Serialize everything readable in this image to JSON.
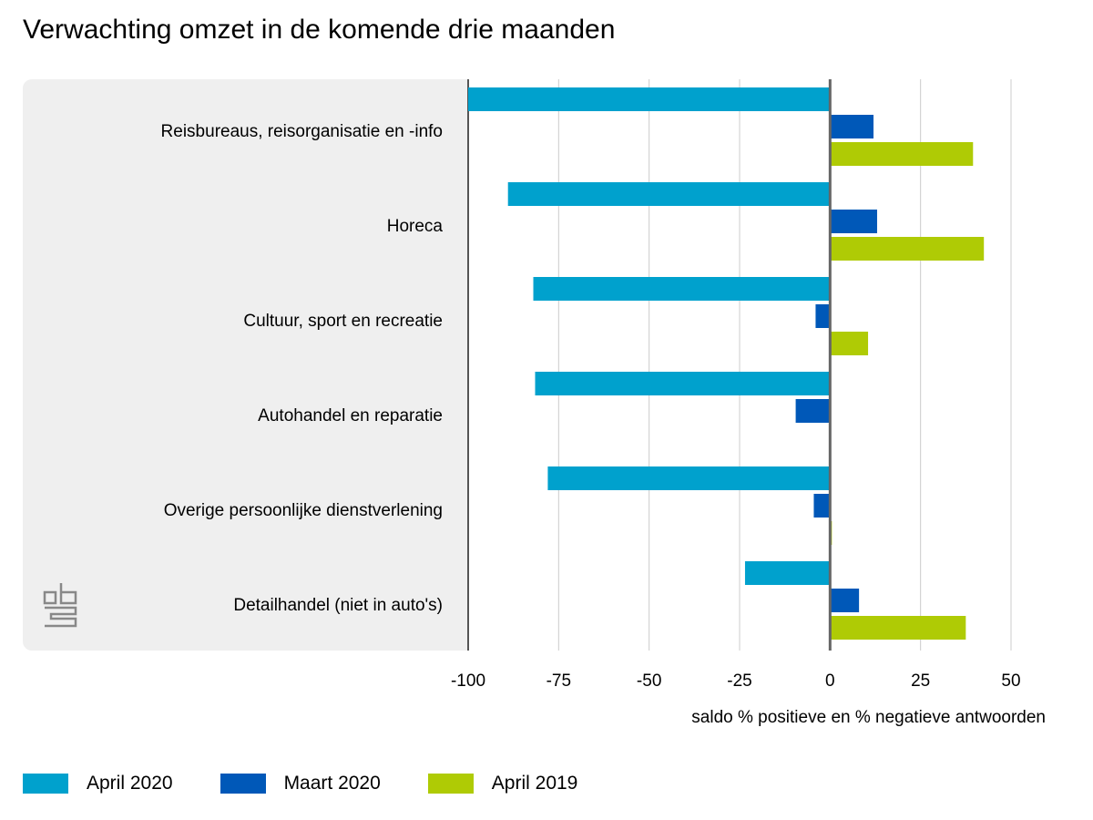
{
  "chart_data": {
    "type": "bar",
    "orientation": "horizontal",
    "title": "Verwachting omzet in de komende drie maanden",
    "xlabel": "saldo % positieve en % negatieve antwoorden",
    "xlim": [
      -100,
      50
    ],
    "xticks": [
      -100,
      -75,
      -50,
      -25,
      0,
      25,
      50
    ],
    "grid": true,
    "legend_position": "bottom",
    "categories": [
      "Reisbureaus, reisorganisatie en -info",
      "Horeca",
      "Cultuur, sport en recreatie",
      "Autohandel en reparatie",
      "Overige persoonlijke dienstverlening",
      "Detailhandel (niet in auto's)"
    ],
    "series": [
      {
        "name": "April 2020",
        "color": "#00a1cd",
        "values": [
          -100,
          -89,
          -82,
          -81.5,
          -78,
          -23.5
        ]
      },
      {
        "name": "Maart 2020",
        "color": "#0058b8",
        "values": [
          12,
          13,
          -4,
          -9.5,
          -4.5,
          8
        ]
      },
      {
        "name": "April 2019",
        "color": "#afcb05",
        "values": [
          39.5,
          42.5,
          10.5,
          0,
          0.5,
          37.5
        ]
      }
    ]
  }
}
